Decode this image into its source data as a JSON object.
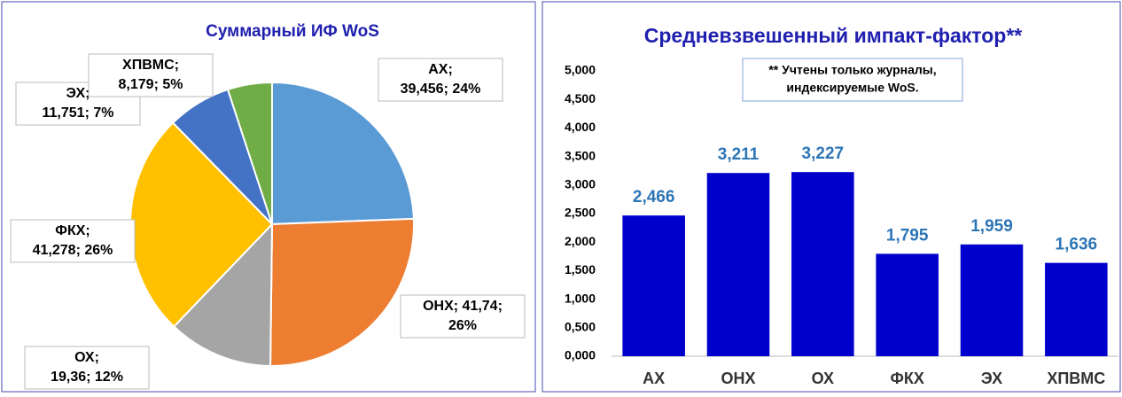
{
  "chart_data": [
    {
      "type": "pie",
      "title": "Суммарный ИФ WoS",
      "categories": [
        "АХ",
        "ОНХ",
        "ОХ",
        "ФКХ",
        "ЭХ",
        "ХПВМС"
      ],
      "values": [
        39.456,
        41.74,
        19.36,
        41.278,
        11.751,
        8.179
      ],
      "value_labels": [
        [
          "АХ;",
          "39,456; 24%"
        ],
        [
          "ОНХ; 41,74;",
          "26%"
        ],
        [
          "ОХ;",
          "19,36; 12%"
        ],
        [
          "ФКХ;",
          "41,278; 26%"
        ],
        [
          "ЭХ;",
          "11,751; 7%"
        ],
        [
          "ХПВМС;",
          "8,179; 5%"
        ]
      ],
      "colors": [
        "#5b9bd5",
        "#ed7d31",
        "#a5a5a5",
        "#ffc000",
        "#4472c4",
        "#70ad47"
      ]
    },
    {
      "type": "bar",
      "title": "Средневзвешенный импакт-фактор**",
      "annotation": [
        "** Учтены только журналы,",
        "индексируемые WoS."
      ],
      "categories": [
        "АХ",
        "ОНХ",
        "ОХ",
        "ФКХ",
        "ЭХ",
        "ХПВМС"
      ],
      "values": [
        2.466,
        3.211,
        3.227,
        1.795,
        1.959,
        1.636
      ],
      "value_labels": [
        "2,466",
        "3,211",
        "3,227",
        "1,795",
        "1,959",
        "1,636"
      ],
      "color": "#0000cc",
      "ylim": [
        0,
        5
      ],
      "yticks": [
        {
          "value": 0,
          "label": "0,000"
        },
        {
          "value": 0.5,
          "label": "0,500"
        },
        {
          "value": 1,
          "label": "1,000"
        },
        {
          "value": 1.5,
          "label": "1,500"
        },
        {
          "value": 2,
          "label": "2,000"
        },
        {
          "value": 2.5,
          "label": "2,500"
        },
        {
          "value": 3,
          "label": "3,000"
        },
        {
          "value": 3.5,
          "label": "3,500"
        },
        {
          "value": 4,
          "label": "4,000"
        },
        {
          "value": 4.5,
          "label": "4,500"
        },
        {
          "value": 5,
          "label": "5,000"
        }
      ]
    }
  ]
}
